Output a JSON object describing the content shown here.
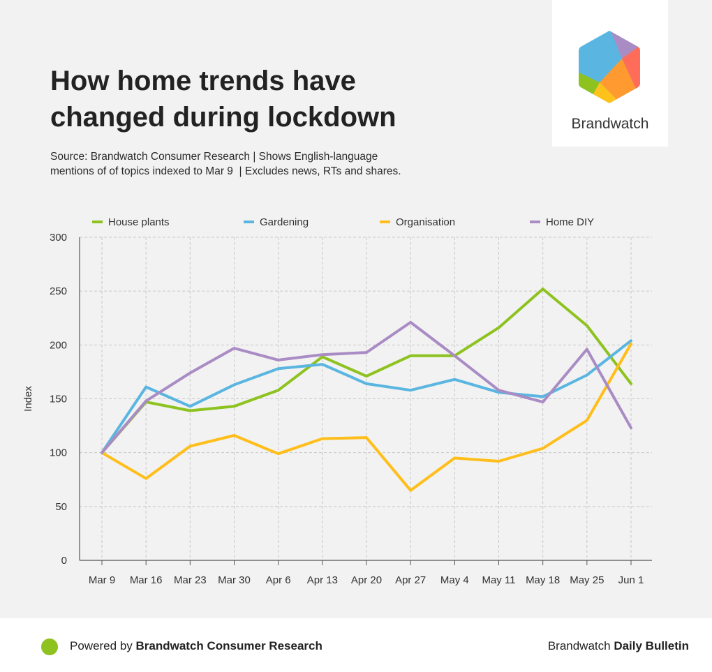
{
  "header": {
    "title_line1": "How home trends have",
    "title_line2": "changed during lockdown",
    "subtitle_line1": "Source: Brandwatch Consumer Research | Shows English-language",
    "subtitle_line2": "mentions of of topics indexed to Mar 9  | Excludes news, RTs and shares."
  },
  "logo": {
    "name": "Brandwatch",
    "icon": "brandwatch-hexagon-logo",
    "colors": [
      "#5ab6e0",
      "#a98cc4",
      "#ff6d5a",
      "#ff9a30",
      "#ffc21a",
      "#8dc21f"
    ]
  },
  "chart_data": {
    "type": "line",
    "ylabel": "Index",
    "xlabel": "",
    "ylim": [
      0,
      300
    ],
    "yticks": [
      0,
      50,
      100,
      150,
      200,
      250,
      300
    ],
    "grid": true,
    "legend_position": "top",
    "categories": [
      "Mar 9",
      "Mar 16",
      "Mar 23",
      "Mar 30",
      "Apr 6",
      "Apr 13",
      "Apr 20",
      "Apr 27",
      "May 4",
      "May 11",
      "May 18",
      "May 25",
      "Jun 1"
    ],
    "series": [
      {
        "name": "House plants",
        "color": "#8dc21f",
        "values": [
          100,
          147,
          139,
          143,
          158,
          189,
          171,
          190,
          190,
          216,
          252,
          218,
          164
        ]
      },
      {
        "name": "Gardening",
        "color": "#5ab6e0",
        "values": [
          100,
          161,
          143,
          163,
          178,
          182,
          164,
          158,
          168,
          156,
          152,
          172,
          204
        ]
      },
      {
        "name": "Organisation",
        "color": "#ffbe1a",
        "values": [
          100,
          76,
          106,
          116,
          99,
          113,
          114,
          65,
          95,
          92,
          104,
          130,
          201
        ]
      },
      {
        "name": "Home DIY",
        "color": "#a98cc4",
        "values": [
          100,
          148,
          174,
          197,
          186,
          191,
          193,
          221,
          190,
          158,
          147,
          196,
          123
        ]
      }
    ]
  },
  "footer": {
    "powered_prefix": "Powered by ",
    "powered_brand": "Brandwatch Consumer Research",
    "right_prefix": "Brandwatch ",
    "right_bold": "Daily Bulletin",
    "dot_color": "#8dc21f"
  }
}
